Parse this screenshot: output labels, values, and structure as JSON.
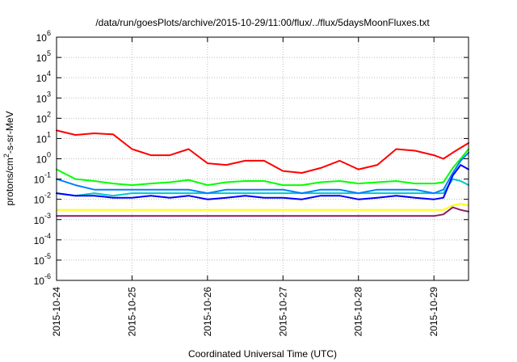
{
  "chart_data": {
    "type": "line",
    "title": "/data/run/goesPlots/archive/2015-10-29/11:00/flux/../flux/5daysMoonFluxes.txt",
    "xlabel": "Coordinated Universal Time (UTC)",
    "ylabel": "protons/cm²-s-sr-MeV",
    "yscale": "log",
    "ylim": [
      1e-06,
      1000000.0
    ],
    "y_ticks": [
      {
        "base": "10",
        "exp": "-6"
      },
      {
        "base": "10",
        "exp": "-5"
      },
      {
        "base": "10",
        "exp": "-4"
      },
      {
        "base": "10",
        "exp": "-3"
      },
      {
        "base": "10",
        "exp": "-2"
      },
      {
        "base": "10",
        "exp": "-1"
      },
      {
        "base": "10",
        "exp": "0"
      },
      {
        "base": "10",
        "exp": "1"
      },
      {
        "base": "10",
        "exp": "2"
      },
      {
        "base": "10",
        "exp": "3"
      },
      {
        "base": "10",
        "exp": "4"
      },
      {
        "base": "10",
        "exp": "5"
      },
      {
        "base": "10",
        "exp": "6"
      }
    ],
    "x_range": [
      "2015-10-24",
      "2015-10-29 11:00"
    ],
    "x_ticks": [
      "2015-10-24",
      "2015-10-25",
      "2015-10-26",
      "2015-10-27",
      "2015-10-28",
      "2015-10-29"
    ],
    "grid": true,
    "x": [
      "2015-10-24 00:00",
      "2015-10-24 06:00",
      "2015-10-24 12:00",
      "2015-10-24 18:00",
      "2015-10-25 00:00",
      "2015-10-25 06:00",
      "2015-10-25 12:00",
      "2015-10-25 18:00",
      "2015-10-26 00:00",
      "2015-10-26 06:00",
      "2015-10-26 12:00",
      "2015-10-26 18:00",
      "2015-10-27 00:00",
      "2015-10-27 06:00",
      "2015-10-27 12:00",
      "2015-10-27 18:00",
      "2015-10-28 00:00",
      "2015-10-28 06:00",
      "2015-10-28 12:00",
      "2015-10-28 18:00",
      "2015-10-29 00:00",
      "2015-10-29 03:00",
      "2015-10-29 06:00",
      "2015-10-29 08:30",
      "2015-10-29 11:00"
    ],
    "series": [
      {
        "color": "#ff0000",
        "values": [
          25,
          15,
          18,
          16,
          3,
          1.5,
          1.5,
          3,
          0.6,
          0.5,
          0.8,
          0.8,
          0.25,
          0.2,
          0.35,
          0.8,
          0.3,
          0.5,
          3,
          2.5,
          1.5,
          1.0,
          2.0,
          3.5,
          6
        ]
      },
      {
        "color": "#00ff00",
        "values": [
          0.3,
          0.1,
          0.08,
          0.06,
          0.05,
          0.06,
          0.07,
          0.09,
          0.05,
          0.07,
          0.08,
          0.08,
          0.05,
          0.05,
          0.07,
          0.08,
          0.06,
          0.07,
          0.08,
          0.06,
          0.06,
          0.07,
          0.35,
          1.0,
          3
        ]
      },
      {
        "color": "#00c8c8",
        "values": [
          0.02,
          0.015,
          0.02,
          0.015,
          0.02,
          0.02,
          0.02,
          0.02,
          0.02,
          0.02,
          0.02,
          0.02,
          0.02,
          0.02,
          0.02,
          0.02,
          0.02,
          0.02,
          0.02,
          0.02,
          0.02,
          0.02,
          0.1,
          0.08,
          0.05
        ]
      },
      {
        "color": "#0080ff",
        "values": [
          0.1,
          0.05,
          0.03,
          0.03,
          0.03,
          0.03,
          0.03,
          0.03,
          0.02,
          0.03,
          0.03,
          0.03,
          0.03,
          0.02,
          0.03,
          0.03,
          0.02,
          0.03,
          0.03,
          0.03,
          0.02,
          0.03,
          0.2,
          0.8,
          2
        ]
      },
      {
        "color": "#0000ff",
        "values": [
          0.02,
          0.015,
          0.015,
          0.012,
          0.012,
          0.015,
          0.012,
          0.015,
          0.01,
          0.012,
          0.015,
          0.012,
          0.012,
          0.01,
          0.015,
          0.015,
          0.01,
          0.012,
          0.015,
          0.012,
          0.01,
          0.012,
          0.15,
          0.5,
          0.3
        ]
      },
      {
        "color": "#ffff00",
        "values": [
          0.003,
          0.003,
          0.003,
          0.003,
          0.003,
          0.003,
          0.003,
          0.003,
          0.003,
          0.003,
          0.003,
          0.003,
          0.003,
          0.003,
          0.003,
          0.003,
          0.003,
          0.003,
          0.003,
          0.003,
          0.003,
          0.003,
          0.005,
          0.006,
          0.005
        ]
      },
      {
        "color": "#8b1c62",
        "values": [
          0.0015,
          0.0015,
          0.0015,
          0.0015,
          0.0015,
          0.0015,
          0.0015,
          0.0015,
          0.0015,
          0.0015,
          0.0015,
          0.0015,
          0.0015,
          0.0015,
          0.0015,
          0.0015,
          0.0015,
          0.0015,
          0.0015,
          0.0015,
          0.0015,
          0.0018,
          0.004,
          0.003,
          0.0025
        ]
      }
    ]
  }
}
